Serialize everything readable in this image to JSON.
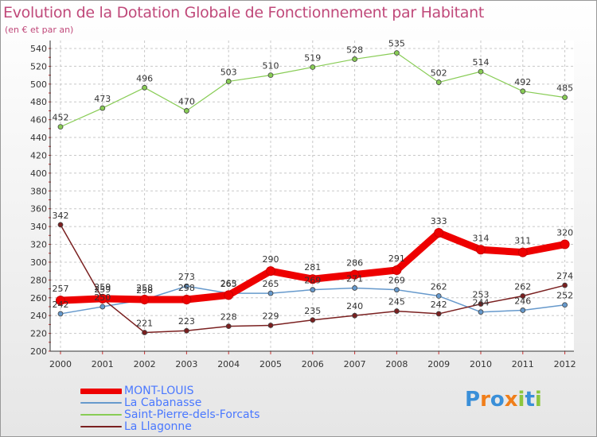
{
  "chart_data": {
    "type": "line",
    "title": "Evolution de la Dotation Globale de Fonctionnement par Habitant",
    "subtitle": "(en € et par an)",
    "xlabel": "",
    "ylabel": "",
    "ylim": [
      200,
      540
    ],
    "yticks": [
      200,
      220,
      240,
      260,
      280,
      300,
      320,
      340,
      360,
      380,
      400,
      420,
      440,
      460,
      480,
      500,
      520,
      540
    ],
    "categories": [
      "2000",
      "2001",
      "2002",
      "2003",
      "2004",
      "2005",
      "2006",
      "2007",
      "2008",
      "2009",
      "2010",
      "2011",
      "2012"
    ],
    "grid": true,
    "legend_position": "bottom-left",
    "series": [
      {
        "name": "MONT-LOUIS",
        "color": "#ee0000",
        "values": [
          257,
          259,
          258,
          258,
          263,
          290,
          281,
          286,
          291,
          333,
          314,
          311,
          320
        ]
      },
      {
        "name": "La Cabanasse",
        "color": "#6699cc",
        "values": [
          242,
          250,
          258,
          273,
          265,
          265,
          269,
          271,
          269,
          262,
          244,
          246,
          252
        ]
      },
      {
        "name": "Saint-Pierre-dels-Forcats",
        "color": "#88cc55",
        "values": [
          452,
          473,
          496,
          470,
          503,
          510,
          519,
          528,
          535,
          502,
          514,
          492,
          485
        ]
      },
      {
        "name": "La Llagonne",
        "color": "#7a2020",
        "values": [
          342,
          259,
          221,
          223,
          228,
          229,
          235,
          240,
          245,
          242,
          253,
          262,
          274
        ]
      }
    ]
  },
  "logo": {
    "text": "Proxiti",
    "letters": [
      "P",
      "r",
      "o",
      "x",
      "i",
      "t",
      "i"
    ],
    "colors": [
      "#3a8fd8",
      "#f07e1a",
      "#3a8fd8",
      "#f07e1a",
      "#8cc63f",
      "#3a8fd8",
      "#8cc63f"
    ]
  }
}
